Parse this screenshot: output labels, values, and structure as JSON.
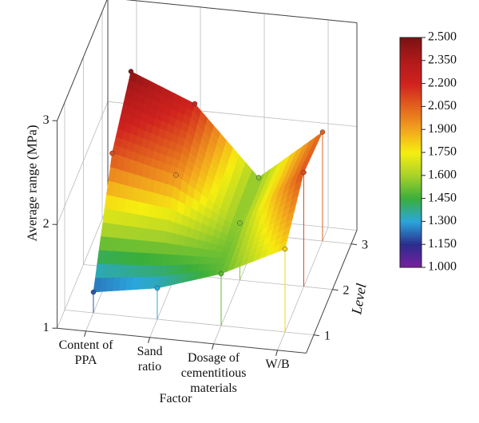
{
  "chart_data": {
    "type": "surface",
    "xlabel": "Factor",
    "ylabel": "Level",
    "zlabel": "Average range (MPa)",
    "categories": [
      "Content of PPA",
      "Sand ratio",
      "Dosage of cementitious materials",
      "W/B"
    ],
    "ylim": [
      0.6,
      3.3
    ],
    "yticks": [
      1,
      2,
      3
    ],
    "zlim": [
      1,
      3
    ],
    "zticks": [
      1,
      2,
      3
    ],
    "values": [
      [
        1.2,
        2.1,
        2.45
      ],
      [
        1.3,
        1.95,
        2.2
      ],
      [
        1.5,
        1.55,
        1.55
      ],
      [
        1.8,
        2.1,
        2.05
      ]
    ],
    "colorbar": {
      "lim": [
        1,
        2.5
      ],
      "ticks": [
        {
          "value": 1,
          "label": "1.000"
        },
        {
          "value": 1.15,
          "label": "1.150"
        },
        {
          "value": 1.3,
          "label": "1.300"
        },
        {
          "value": 1.45,
          "label": "1.450"
        },
        {
          "value": 1.6,
          "label": "1.600"
        },
        {
          "value": 1.75,
          "label": "1.750"
        },
        {
          "value": 1.9,
          "label": "1.900"
        },
        {
          "value": 2.05,
          "label": "2.050"
        },
        {
          "value": 2.2,
          "label": "2.200"
        },
        {
          "value": 2.35,
          "label": "2.350"
        },
        {
          "value": 2.5,
          "label": "2.500"
        }
      ],
      "colors": [
        "#7a1fa0",
        "#2b2c8c",
        "#2aa6dc",
        "#3aae3a",
        "#a8d22a",
        "#f6ee10",
        "#f2a41e",
        "#e2621e",
        "#d0221e",
        "#b01a1a",
        "#7a1212"
      ]
    }
  }
}
